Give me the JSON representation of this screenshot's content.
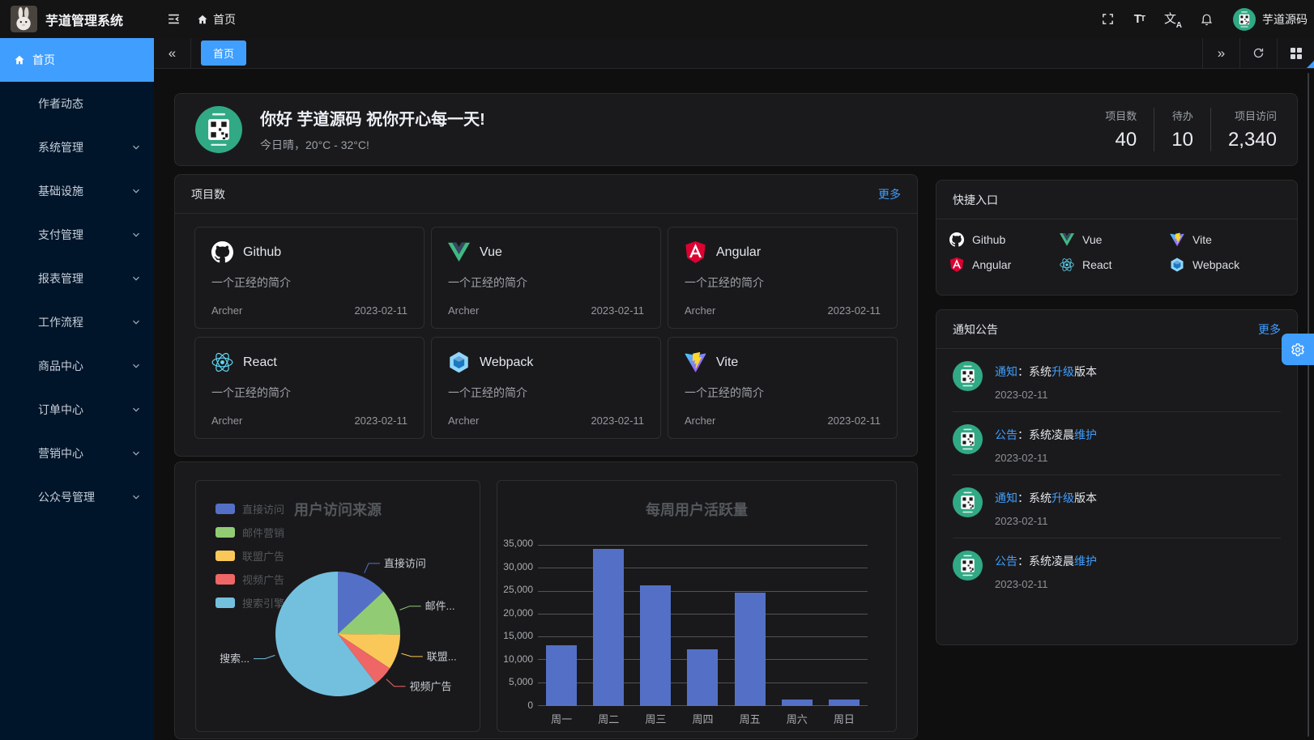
{
  "header": {
    "app_title": "芋道管理系统",
    "breadcrumb_home": "首页",
    "username": "芋道源码"
  },
  "tabbar": {
    "tabs": [
      {
        "label": "首页",
        "active": true
      }
    ]
  },
  "sidebar": {
    "items": [
      {
        "label": "首页",
        "active": true,
        "icon": "home",
        "chevron": false
      },
      {
        "label": "作者动态",
        "chevron": false
      },
      {
        "label": "系统管理",
        "chevron": true
      },
      {
        "label": "基础设施",
        "chevron": true
      },
      {
        "label": "支付管理",
        "chevron": true
      },
      {
        "label": "报表管理",
        "chevron": true
      },
      {
        "label": "工作流程",
        "chevron": true
      },
      {
        "label": "商品中心",
        "chevron": true
      },
      {
        "label": "订单中心",
        "chevron": true
      },
      {
        "label": "营销中心",
        "chevron": true
      },
      {
        "label": "公众号管理",
        "chevron": true
      }
    ]
  },
  "welcome": {
    "greeting": "你好 芋道源码 祝你开心每一天!",
    "weather": "今日晴，20°C - 32°C!",
    "stats": [
      {
        "label": "项目数",
        "value": "40"
      },
      {
        "label": "待办",
        "value": "10"
      },
      {
        "label": "项目访问",
        "value": "2,340"
      }
    ]
  },
  "projects": {
    "title": "项目数",
    "more_label": "更多",
    "items": [
      {
        "name": "Github",
        "icon": "github",
        "desc": "一个正经的简介",
        "author": "Archer",
        "date": "2023-02-11"
      },
      {
        "name": "Vue",
        "icon": "vue",
        "desc": "一个正经的简介",
        "author": "Archer",
        "date": "2023-02-11"
      },
      {
        "name": "Angular",
        "icon": "angular",
        "desc": "一个正经的简介",
        "author": "Archer",
        "date": "2023-02-11"
      },
      {
        "name": "React",
        "icon": "react",
        "desc": "一个正经的简介",
        "author": "Archer",
        "date": "2023-02-11"
      },
      {
        "name": "Webpack",
        "icon": "webpack",
        "desc": "一个正经的简介",
        "author": "Archer",
        "date": "2023-02-11"
      },
      {
        "name": "Vite",
        "icon": "vite",
        "desc": "一个正经的简介",
        "author": "Archer",
        "date": "2023-02-11"
      }
    ]
  },
  "shortcuts": {
    "title": "快捷入口",
    "items": [
      {
        "label": "Github",
        "icon": "github"
      },
      {
        "label": "Vue",
        "icon": "vue"
      },
      {
        "label": "Vite",
        "icon": "vite"
      },
      {
        "label": "Angular",
        "icon": "angular"
      },
      {
        "label": "React",
        "icon": "react"
      },
      {
        "label": "Webpack",
        "icon": "webpack"
      }
    ]
  },
  "notices": {
    "title": "通知公告",
    "more_label": "更多",
    "items": [
      {
        "segments": [
          {
            "t": "通知",
            "hl": true
          },
          {
            "t": "：系统"
          },
          {
            "t": "升级",
            "hl": true
          },
          {
            "t": "版本"
          }
        ],
        "date": "2023-02-11"
      },
      {
        "segments": [
          {
            "t": "公告",
            "hl": true
          },
          {
            "t": "：系统凌晨"
          },
          {
            "t": "维护",
            "hl": true
          }
        ],
        "date": "2023-02-11"
      },
      {
        "segments": [
          {
            "t": "通知",
            "hl": true
          },
          {
            "t": "：系统"
          },
          {
            "t": "升级",
            "hl": true
          },
          {
            "t": "版本"
          }
        ],
        "date": "2023-02-11"
      },
      {
        "segments": [
          {
            "t": "公告",
            "hl": true
          },
          {
            "t": "：系统凌晨"
          },
          {
            "t": "维护",
            "hl": true
          }
        ],
        "date": "2023-02-11"
      }
    ]
  },
  "colors": {
    "primary": "#409eff",
    "sidebar_bg": "#001529",
    "avatar_green": "#30a984",
    "bar_color": "#5470c6"
  },
  "chart_data": [
    {
      "type": "pie",
      "title": "用户访问来源",
      "legend_position": "left",
      "legend": [
        "直接访问",
        "邮件营销",
        "联盟广告",
        "视频广告",
        "搜索引擎"
      ],
      "series": [
        {
          "name": "用户访问来源",
          "data": [
            {
              "name": "直接访问",
              "value": 335
            },
            {
              "name": "邮件营销",
              "value": 310
            },
            {
              "name": "联盟广告",
              "value": 234
            },
            {
              "name": "视频广告",
              "value": 135
            },
            {
              "name": "搜索引擎",
              "value": 1548
            }
          ]
        }
      ],
      "callout_labels": [
        "直接访问",
        "邮件...",
        "联盟...",
        "视频广告",
        "搜索..."
      ],
      "colors": [
        "#5470c6",
        "#91cc75",
        "#fac858",
        "#ee6666",
        "#73c0de"
      ]
    },
    {
      "type": "bar",
      "title": "每周用户活跃量",
      "categories": [
        "周一",
        "周二",
        "周三",
        "周四",
        "周五",
        "周六",
        "周日"
      ],
      "values": [
        13300,
        34300,
        26400,
        12400,
        24700,
        1400,
        1400
      ],
      "xlabel": "",
      "ylabel": "",
      "ylim": [
        0,
        35000
      ],
      "ytick_step": 5000,
      "grid": true
    }
  ]
}
